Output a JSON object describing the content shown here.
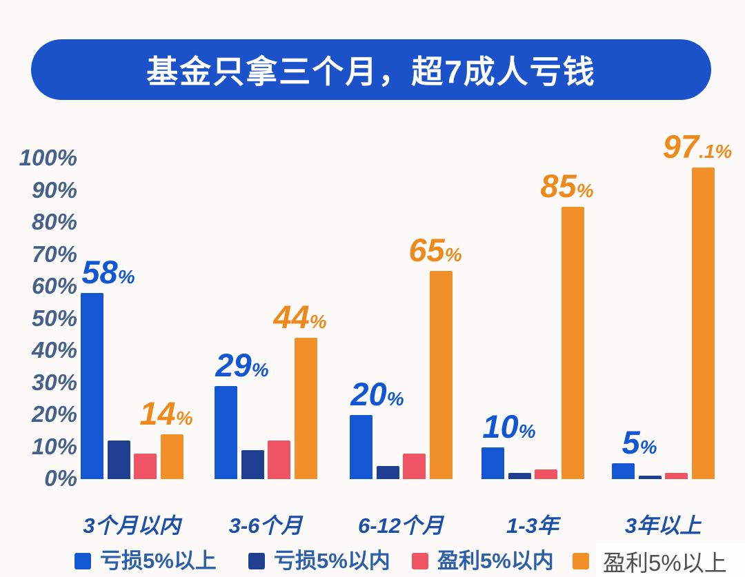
{
  "title": "基金只拿三个月，超7成人亏钱",
  "colors": {
    "background": "#fbfaf9",
    "title_pill": "#1b51c9",
    "title_text": "#ffffff",
    "y_axis_label": "#47608a",
    "x_axis_label": "#1d4fa8",
    "legend_label": "#2d5fa8",
    "legend_highlight_text": "#4f4f4f",
    "legend_highlight_bg": "#fdfdfd"
  },
  "chart_data": {
    "type": "bar",
    "title": "基金只拿三个月，超7成人亏钱",
    "categories": [
      "3个月以内",
      "3-6个月",
      "6-12个月",
      "1-3年",
      "3年以上"
    ],
    "series": [
      {
        "name": "亏损5%以上",
        "color": "#1457d3",
        "label_color": "#1356d4",
        "values": [
          58,
          29,
          20,
          10,
          5
        ],
        "value_labels": [
          "58%",
          "29%",
          "20%",
          "10%",
          "5%"
        ]
      },
      {
        "name": "亏损5%以内",
        "color": "#1e3f92",
        "label_color": null,
        "values": [
          12,
          9,
          4,
          2,
          1
        ],
        "value_labels": null
      },
      {
        "name": "盈利5%以内",
        "color": "#ee5463",
        "label_color": null,
        "values": [
          8,
          12,
          8,
          3,
          2
        ],
        "value_labels": null
      },
      {
        "name": "盈利5%以上",
        "color": "#f18f28",
        "label_color": "#ee8a1d",
        "values": [
          14,
          44,
          65,
          85,
          97.1
        ],
        "value_labels": [
          "14%",
          "44%",
          "65%",
          "85%",
          "97.1%"
        ]
      }
    ],
    "xlabel": "",
    "ylabel": "",
    "ylim": [
      0,
      100
    ],
    "yticks": [
      "100%",
      "90%",
      "80%",
      "70%",
      "60%",
      "50%",
      "40%",
      "30%",
      "20%",
      "10%",
      "0%"
    ],
    "grid": false,
    "legend_position": "bottom"
  },
  "legend": {
    "items": [
      {
        "label": "亏损5%以上",
        "color": "#1457d3",
        "highlighted": false
      },
      {
        "label": "亏损5%以内",
        "color": "#1e3f92",
        "highlighted": false
      },
      {
        "label": "盈利5%以内",
        "color": "#ee5463",
        "highlighted": false
      },
      {
        "label": "盈利5%以上",
        "color": "#f18f28",
        "highlighted": true
      }
    ]
  }
}
